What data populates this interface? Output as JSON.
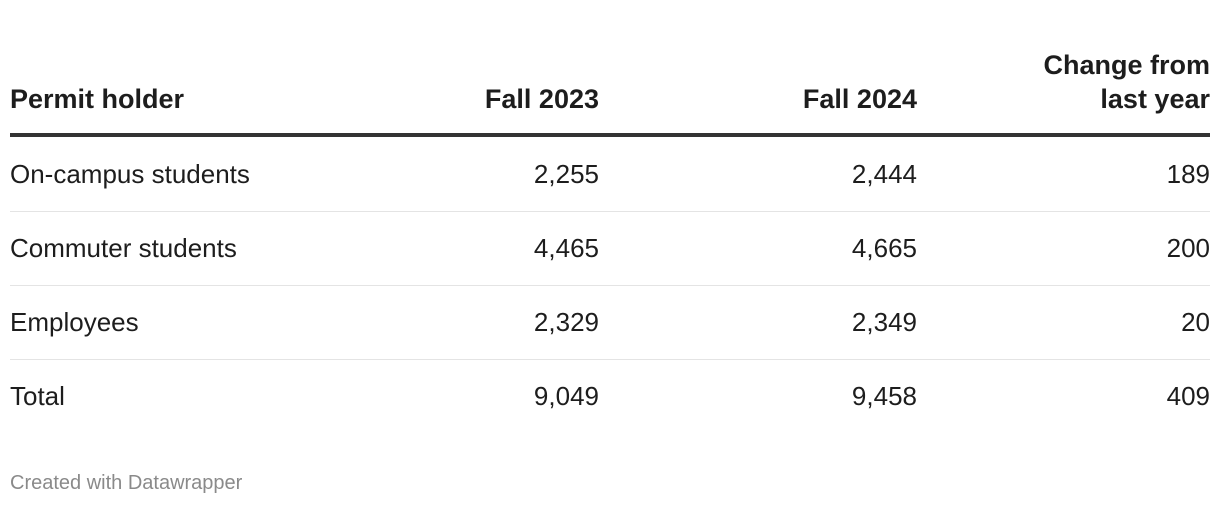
{
  "table": {
    "header": [
      "Permit holder",
      "Fall 2023",
      "Fall 2024",
      "Change from last year"
    ],
    "rows": [
      [
        "On-campus students",
        "2,255",
        "2,444",
        "189"
      ],
      [
        "Commuter students",
        "4,465",
        "4,665",
        "200"
      ],
      [
        "Employees",
        "2,329",
        "2,349",
        "20"
      ],
      [
        "Total",
        "9,049",
        "9,458",
        "409"
      ]
    ]
  },
  "footer": "Created with Datawrapper"
}
